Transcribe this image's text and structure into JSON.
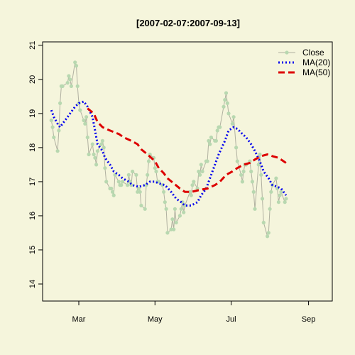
{
  "chart_data": {
    "type": "line",
    "title": "[2007-02-07:2007-09-13]",
    "xlabel": "",
    "ylabel": "",
    "x_ticks": [
      {
        "label": "Mar",
        "date": "2007-03-01"
      },
      {
        "label": "May",
        "date": "2007-05-01"
      },
      {
        "label": "Jul",
        "date": "2007-07-01"
      },
      {
        "label": "Sep",
        "date": "2007-09-01"
      }
    ],
    "y_ticks": [
      14,
      15,
      16,
      17,
      18,
      19,
      20,
      21
    ],
    "xlim": [
      "2007-01-31",
      "2007-09-20"
    ],
    "ylim": [
      13.5,
      21.1
    ],
    "grid": false,
    "legend_position": "top-right",
    "colors": {
      "background": "#f5f5dc",
      "close_line": "#b0b0a0",
      "close_point": "#b8d8b0",
      "ma20": "#0000ee",
      "ma50": "#dd0000"
    },
    "series": [
      {
        "name": "Close",
        "style": "line-points",
        "color": "#b0d8ac",
        "points": [
          [
            "2007-02-07",
            18.8
          ],
          [
            "2007-02-08",
            18.6
          ],
          [
            "2007-02-09",
            18.3
          ],
          [
            "2007-02-12",
            17.9
          ],
          [
            "2007-02-13",
            18.5
          ],
          [
            "2007-02-14",
            19.3
          ],
          [
            "2007-02-15",
            19.8
          ],
          [
            "2007-02-16",
            19.8
          ],
          [
            "2007-02-20",
            19.9
          ],
          [
            "2007-02-21",
            20.1
          ],
          [
            "2007-02-22",
            20.0
          ],
          [
            "2007-02-23",
            19.8
          ],
          [
            "2007-02-26",
            20.5
          ],
          [
            "2007-02-27",
            20.4
          ],
          [
            "2007-02-28",
            19.8
          ],
          [
            "2007-03-01",
            19.3
          ],
          [
            "2007-03-02",
            19.1
          ],
          [
            "2007-03-05",
            18.8
          ],
          [
            "2007-03-06",
            18.7
          ],
          [
            "2007-03-07",
            18.9
          ],
          [
            "2007-03-08",
            18.3
          ],
          [
            "2007-03-09",
            17.8
          ],
          [
            "2007-03-12",
            18.1
          ],
          [
            "2007-03-13",
            17.8
          ],
          [
            "2007-03-14",
            17.7
          ],
          [
            "2007-03-15",
            17.5
          ],
          [
            "2007-03-16",
            17.9
          ],
          [
            "2007-03-19",
            18.1
          ],
          [
            "2007-03-20",
            18.2
          ],
          [
            "2007-03-21",
            18.0
          ],
          [
            "2007-03-22",
            17.4
          ],
          [
            "2007-03-23",
            17.0
          ],
          [
            "2007-03-26",
            16.8
          ],
          [
            "2007-03-27",
            16.8
          ],
          [
            "2007-03-28",
            16.7
          ],
          [
            "2007-03-29",
            16.6
          ],
          [
            "2007-03-30",
            17.2
          ],
          [
            "2007-04-02",
            17.0
          ],
          [
            "2007-04-03",
            16.9
          ],
          [
            "2007-04-04",
            16.9
          ],
          [
            "2007-04-05",
            17.0
          ],
          [
            "2007-04-09",
            16.9
          ],
          [
            "2007-04-10",
            17.2
          ],
          [
            "2007-04-11",
            17.0
          ],
          [
            "2007-04-12",
            16.9
          ],
          [
            "2007-04-13",
            17.3
          ],
          [
            "2007-04-16",
            17.2
          ],
          [
            "2007-04-17",
            16.7
          ],
          [
            "2007-04-18",
            16.8
          ],
          [
            "2007-04-19",
            16.7
          ],
          [
            "2007-04-20",
            16.3
          ],
          [
            "2007-04-23",
            16.2
          ],
          [
            "2007-04-24",
            16.9
          ],
          [
            "2007-04-25",
            17.2
          ],
          [
            "2007-04-26",
            17.6
          ],
          [
            "2007-04-27",
            17.8
          ],
          [
            "2007-04-30",
            17.7
          ],
          [
            "2007-05-01",
            17.4
          ],
          [
            "2007-05-02",
            17.3
          ],
          [
            "2007-05-03",
            17.0
          ],
          [
            "2007-05-04",
            17.0
          ],
          [
            "2007-05-07",
            16.9
          ],
          [
            "2007-05-08",
            16.7
          ],
          [
            "2007-05-09",
            16.4
          ],
          [
            "2007-05-10",
            16.2
          ],
          [
            "2007-05-11",
            15.5
          ],
          [
            "2007-05-14",
            15.6
          ],
          [
            "2007-05-15",
            15.9
          ],
          [
            "2007-05-16",
            15.6
          ],
          [
            "2007-05-17",
            16.2
          ],
          [
            "2007-05-18",
            15.8
          ],
          [
            "2007-05-21",
            16.0
          ],
          [
            "2007-05-22",
            16.2
          ],
          [
            "2007-05-23",
            16.4
          ],
          [
            "2007-05-24",
            16.1
          ],
          [
            "2007-05-25",
            16.3
          ],
          [
            "2007-05-29",
            16.7
          ],
          [
            "2007-05-30",
            16.6
          ],
          [
            "2007-05-31",
            16.9
          ],
          [
            "2007-06-01",
            17.0
          ],
          [
            "2007-06-04",
            16.8
          ],
          [
            "2007-06-05",
            17.3
          ],
          [
            "2007-06-06",
            17.2
          ],
          [
            "2007-06-07",
            17.5
          ],
          [
            "2007-06-08",
            17.3
          ],
          [
            "2007-06-11",
            17.6
          ],
          [
            "2007-06-12",
            17.6
          ],
          [
            "2007-06-13",
            18.2
          ],
          [
            "2007-06-14",
            18.1
          ],
          [
            "2007-06-15",
            18.3
          ],
          [
            "2007-06-18",
            18.2
          ],
          [
            "2007-06-19",
            18.2
          ],
          [
            "2007-06-20",
            18.5
          ],
          [
            "2007-06-21",
            18.6
          ],
          [
            "2007-06-22",
            18.6
          ],
          [
            "2007-06-25",
            19.2
          ],
          [
            "2007-06-26",
            19.4
          ],
          [
            "2007-06-27",
            19.6
          ],
          [
            "2007-06-28",
            19.3
          ],
          [
            "2007-06-29",
            19.0
          ],
          [
            "2007-07-02",
            18.7
          ],
          [
            "2007-07-03",
            18.9
          ],
          [
            "2007-07-05",
            18.0
          ],
          [
            "2007-07-06",
            17.6
          ],
          [
            "2007-07-09",
            17.2
          ],
          [
            "2007-07-10",
            17.0
          ],
          [
            "2007-07-11",
            17.3
          ],
          [
            "2007-07-12",
            17.5
          ],
          [
            "2007-07-13",
            17.5
          ],
          [
            "2007-07-16",
            17.6
          ],
          [
            "2007-07-17",
            17.3
          ],
          [
            "2007-07-18",
            17.0
          ],
          [
            "2007-07-19",
            16.7
          ],
          [
            "2007-07-20",
            16.2
          ],
          [
            "2007-07-23",
            17.5
          ],
          [
            "2007-07-24",
            17.8
          ],
          [
            "2007-07-25",
            17.2
          ],
          [
            "2007-07-26",
            16.5
          ],
          [
            "2007-07-27",
            15.8
          ],
          [
            "2007-07-30",
            15.4
          ],
          [
            "2007-07-31",
            15.5
          ],
          [
            "2007-08-01",
            16.2
          ],
          [
            "2007-08-02",
            16.7
          ],
          [
            "2007-08-03",
            16.9
          ],
          [
            "2007-08-06",
            17.1
          ],
          [
            "2007-08-07",
            16.8
          ],
          [
            "2007-08-08",
            16.4
          ],
          [
            "2007-08-09",
            16.6
          ],
          [
            "2007-08-10",
            16.7
          ],
          [
            "2007-08-13",
            16.4
          ],
          [
            "2007-08-14",
            16.5
          ]
        ]
      },
      {
        "name": "MA(20)",
        "style": "dotted",
        "color": "#0000ee",
        "points": [
          [
            "2007-02-07",
            19.1
          ],
          [
            "2007-02-09",
            18.9
          ],
          [
            "2007-02-12",
            18.7
          ],
          [
            "2007-02-14",
            18.6
          ],
          [
            "2007-02-16",
            18.7
          ],
          [
            "2007-02-20",
            18.9
          ],
          [
            "2007-02-22",
            19.0
          ],
          [
            "2007-02-26",
            19.2
          ],
          [
            "2007-03-01",
            19.3
          ],
          [
            "2007-03-05",
            19.35
          ],
          [
            "2007-03-08",
            19.2
          ],
          [
            "2007-03-12",
            18.9
          ],
          [
            "2007-03-14",
            18.5
          ],
          [
            "2007-03-16",
            18.1
          ],
          [
            "2007-03-20",
            17.9
          ],
          [
            "2007-03-22",
            17.7
          ],
          [
            "2007-03-26",
            17.5
          ],
          [
            "2007-03-29",
            17.3
          ],
          [
            "2007-04-02",
            17.2
          ],
          [
            "2007-04-05",
            17.1
          ],
          [
            "2007-04-10",
            17.0
          ],
          [
            "2007-04-13",
            16.9
          ],
          [
            "2007-04-18",
            16.85
          ],
          [
            "2007-04-23",
            16.9
          ],
          [
            "2007-04-27",
            17.0
          ],
          [
            "2007-05-01",
            17.0
          ],
          [
            "2007-05-04",
            16.95
          ],
          [
            "2007-05-09",
            16.9
          ],
          [
            "2007-05-14",
            16.7
          ],
          [
            "2007-05-18",
            16.5
          ],
          [
            "2007-05-22",
            16.4
          ],
          [
            "2007-05-25",
            16.3
          ],
          [
            "2007-05-30",
            16.3
          ],
          [
            "2007-06-04",
            16.4
          ],
          [
            "2007-06-07",
            16.6
          ],
          [
            "2007-06-11",
            16.8
          ],
          [
            "2007-06-14",
            17.1
          ],
          [
            "2007-06-18",
            17.5
          ],
          [
            "2007-06-21",
            17.8
          ],
          [
            "2007-06-26",
            18.2
          ],
          [
            "2007-06-29",
            18.5
          ],
          [
            "2007-07-03",
            18.6
          ],
          [
            "2007-07-06",
            18.55
          ],
          [
            "2007-07-10",
            18.4
          ],
          [
            "2007-07-13",
            18.3
          ],
          [
            "2007-07-17",
            18.1
          ],
          [
            "2007-07-20",
            17.9
          ],
          [
            "2007-07-24",
            17.6
          ],
          [
            "2007-07-27",
            17.3
          ],
          [
            "2007-07-31",
            17.1
          ],
          [
            "2007-08-03",
            16.9
          ],
          [
            "2007-08-07",
            16.85
          ],
          [
            "2007-08-10",
            16.8
          ],
          [
            "2007-08-14",
            16.6
          ]
        ]
      },
      {
        "name": "MA(50)",
        "style": "dashed",
        "color": "#dd0000",
        "points": [
          [
            "2007-03-08",
            19.15
          ],
          [
            "2007-03-13",
            19.0
          ],
          [
            "2007-03-16",
            18.75
          ],
          [
            "2007-03-20",
            18.6
          ],
          [
            "2007-03-26",
            18.5
          ],
          [
            "2007-04-02",
            18.4
          ],
          [
            "2007-04-06",
            18.3
          ],
          [
            "2007-04-12",
            18.2
          ],
          [
            "2007-04-17",
            18.1
          ],
          [
            "2007-04-20",
            17.95
          ],
          [
            "2007-04-25",
            17.8
          ],
          [
            "2007-05-01",
            17.6
          ],
          [
            "2007-05-04",
            17.4
          ],
          [
            "2007-05-08",
            17.25
          ],
          [
            "2007-05-11",
            17.1
          ],
          [
            "2007-05-16",
            16.95
          ],
          [
            "2007-05-21",
            16.8
          ],
          [
            "2007-05-25",
            16.7
          ],
          [
            "2007-05-30",
            16.7
          ],
          [
            "2007-06-05",
            16.75
          ],
          [
            "2007-06-12",
            16.8
          ],
          [
            "2007-06-18",
            16.9
          ],
          [
            "2007-06-22",
            17.0
          ],
          [
            "2007-06-27",
            17.2
          ],
          [
            "2007-07-02",
            17.3
          ],
          [
            "2007-07-06",
            17.4
          ],
          [
            "2007-07-11",
            17.5
          ],
          [
            "2007-07-16",
            17.55
          ],
          [
            "2007-07-20",
            17.65
          ],
          [
            "2007-07-25",
            17.75
          ],
          [
            "2007-07-30",
            17.8
          ],
          [
            "2007-08-03",
            17.75
          ],
          [
            "2007-08-08",
            17.7
          ],
          [
            "2007-08-14",
            17.55
          ]
        ]
      }
    ]
  }
}
